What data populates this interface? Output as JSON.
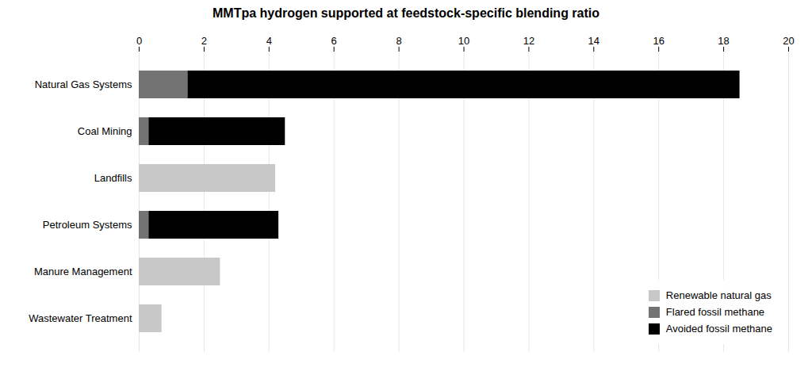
{
  "chart_data": {
    "type": "bar",
    "orientation": "horizontal",
    "stacked": true,
    "title": "MMTpa hydrogen supported at feedstock-specific blending ratio",
    "categories": [
      "Natural Gas Systems",
      "Coal Mining",
      "Landfills",
      "Petroleum Systems",
      "Manure Management",
      "Wastewater Treatment"
    ],
    "series": [
      {
        "name": "Renewable natural gas",
        "color": "#c8c8c8",
        "values": [
          0,
          0,
          4.2,
          0,
          2.5,
          0.7
        ]
      },
      {
        "name": "Flared fossil methane",
        "color": "#737373",
        "values": [
          1.5,
          0.3,
          0,
          0.3,
          0,
          0
        ]
      },
      {
        "name": "Avoided fossil methane",
        "color": "#000000",
        "values": [
          17.0,
          4.2,
          0,
          4.0,
          0,
          0
        ]
      }
    ],
    "xlim": [
      0,
      20
    ],
    "xticks": [
      0,
      2,
      4,
      6,
      8,
      10,
      12,
      14,
      16,
      18,
      20
    ],
    "grid": true,
    "legend": "lower right"
  }
}
